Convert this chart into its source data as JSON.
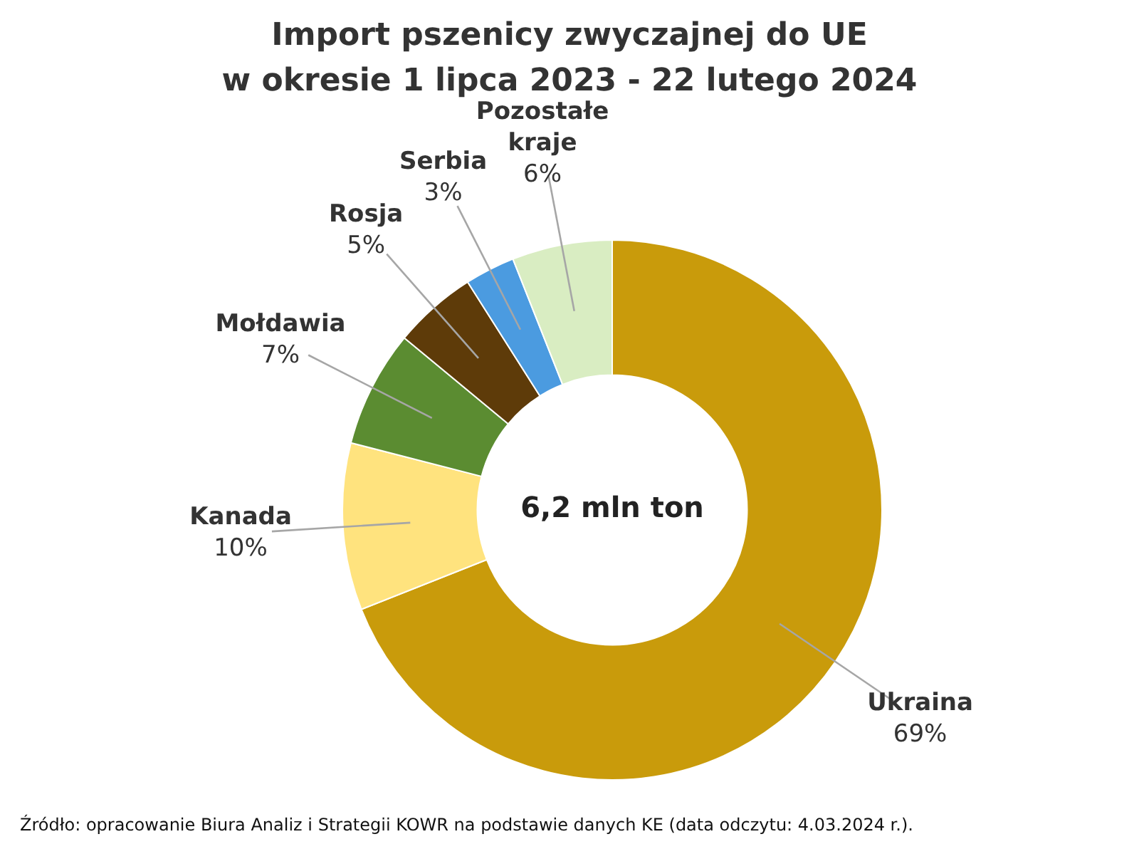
{
  "chart_data": {
    "type": "donut",
    "title": "Import pszenicy zwyczajnej do UE\nw okresie 1 lipca 2023 - 22 lutego 2024",
    "categories": [
      "Ukraina",
      "Kanada",
      "Mołdawia",
      "Rosja",
      "Serbia",
      "Pozostałe kraje"
    ],
    "values": [
      69,
      10,
      7,
      5,
      3,
      6
    ],
    "colors": [
      "#c99b0b",
      "#ffe37e",
      "#5b8c31",
      "#5e3b09",
      "#4b9be0",
      "#d9edc2"
    ],
    "value_labels": [
      "69%",
      "10%",
      "7%",
      "5%",
      "3%",
      "6%"
    ],
    "legend": false,
    "annotations": [
      "6,2 mln ton",
      "Źródło: opracowanie Biura Analiz i Strategii KOWR na podstawie danych KE (data odczytu: 4.03.2024 r.)."
    ]
  }
}
